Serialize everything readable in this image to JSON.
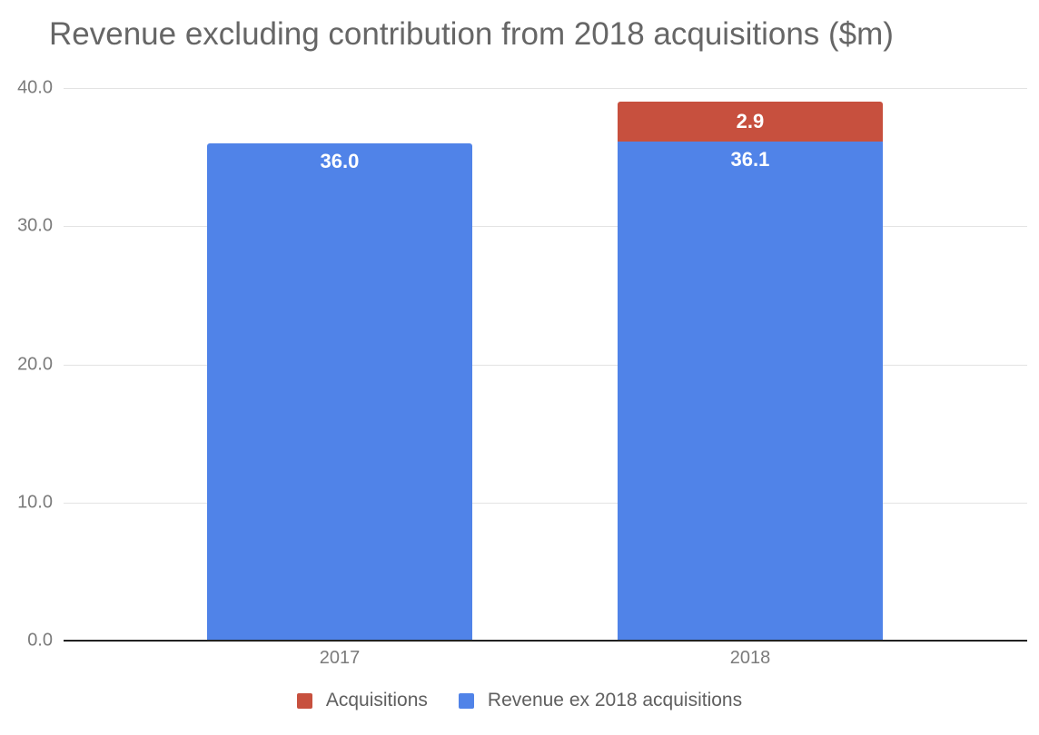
{
  "chart_data": {
    "type": "bar",
    "stacked": true,
    "title": "Revenue excluding contribution from 2018 acquisitions ($m)",
    "xlabel": "",
    "ylabel": "",
    "categories": [
      "2017",
      "2018"
    ],
    "series": [
      {
        "name": "Revenue ex 2018 acquisitions",
        "color": "#5083E8",
        "values": [
          36.0,
          36.1
        ],
        "labels": [
          "36.0",
          "36.1"
        ]
      },
      {
        "name": "Acquisitions",
        "color": "#C7503E",
        "values": [
          0,
          2.9
        ],
        "labels": [
          "",
          "2.9"
        ]
      }
    ],
    "ylim": [
      0,
      40
    ],
    "yticks": [
      "0.0",
      "10.0",
      "20.0",
      "30.0",
      "40.0"
    ],
    "grid": true,
    "legend_position": "bottom",
    "legend": [
      {
        "label": "Acquisitions",
        "color": "#C7503E"
      },
      {
        "label": "Revenue ex 2018 acquisitions",
        "color": "#5083E8"
      }
    ]
  }
}
